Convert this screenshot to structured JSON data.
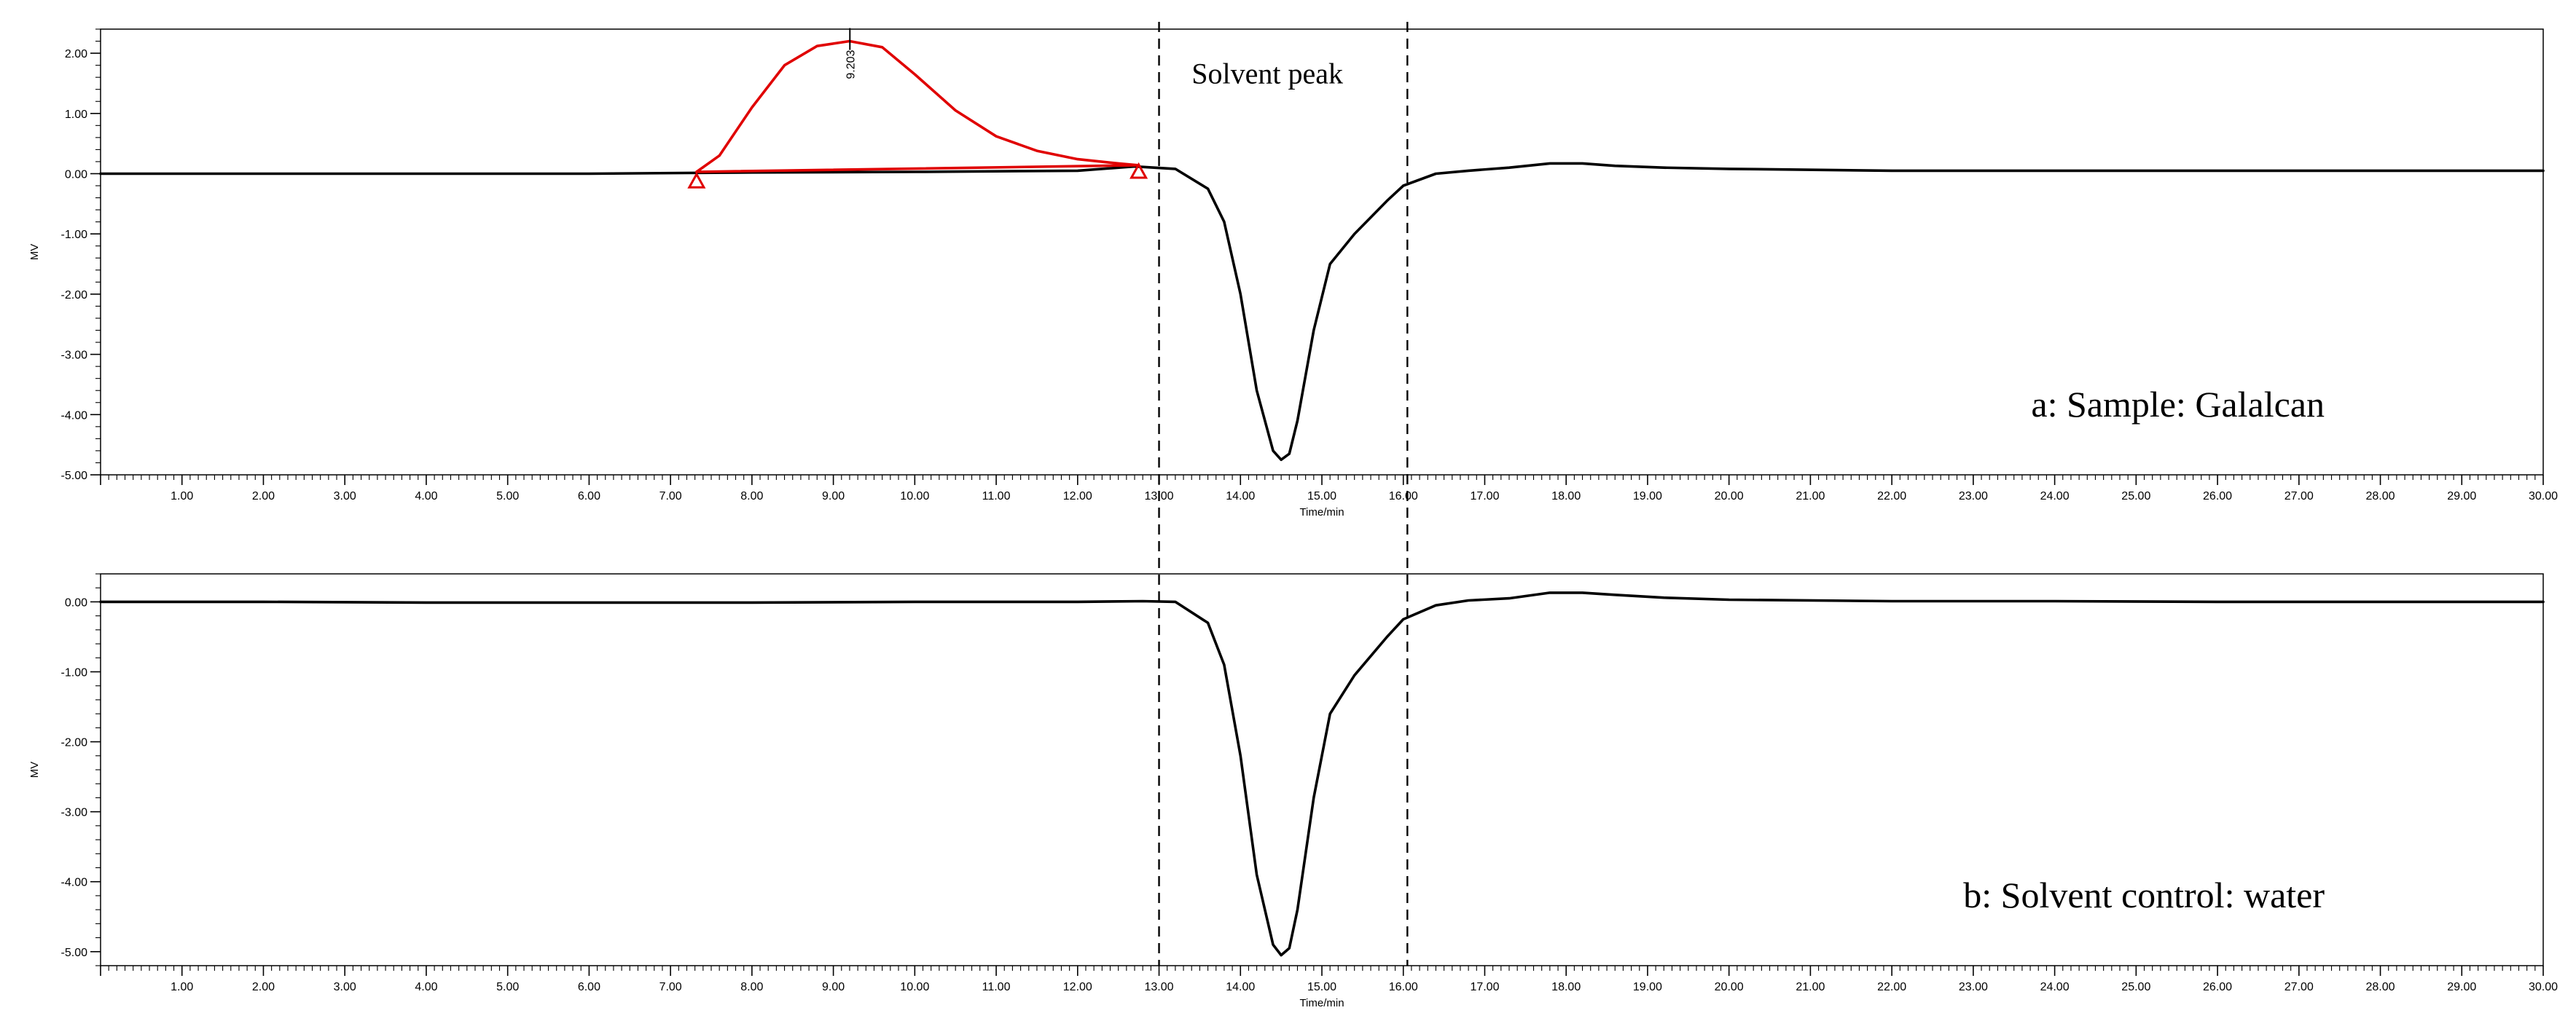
{
  "chart_data": [
    {
      "type": "line",
      "panel_label": "a: Sample: Galalcan",
      "xlabel": "Time/min",
      "ylabel": "MV",
      "xlim": [
        0,
        30
      ],
      "ylim": [
        -5.0,
        2.4
      ],
      "x_ticks": [
        "1.00",
        "2.00",
        "3.00",
        "4.00",
        "5.00",
        "6.00",
        "7.00",
        "8.00",
        "9.00",
        "10.00",
        "11.00",
        "12.00",
        "13.00",
        "14.00",
        "15.00",
        "16.00",
        "17.00",
        "18.00",
        "19.00",
        "20.00",
        "21.00",
        "22.00",
        "23.00",
        "24.00",
        "25.00",
        "26.00",
        "27.00",
        "28.00",
        "29.00",
        "30.00"
      ],
      "y_ticks": [
        "2.00",
        "1.00",
        "0.00",
        "-1.00",
        "-2.00",
        "-3.00",
        "-4.00",
        "-5.00"
      ],
      "grid": false,
      "series": [
        {
          "color": "#000000",
          "x": [
            0,
            2,
            4,
            6,
            8,
            10,
            12,
            12.7,
            13.2,
            13.6,
            13.8,
            14.0,
            14.2,
            14.4,
            14.5,
            14.6,
            14.7,
            14.9,
            15.1,
            15.4,
            15.8,
            16.0,
            16.4,
            16.8,
            17.3,
            17.8,
            18.2,
            18.6,
            19.2,
            20,
            22,
            24,
            26,
            28,
            30
          ],
          "y": [
            0.0,
            0.0,
            0.0,
            0.0,
            0.02,
            0.03,
            0.05,
            0.12,
            0.08,
            -0.25,
            -0.8,
            -2.0,
            -3.6,
            -4.6,
            -4.75,
            -4.65,
            -4.1,
            -2.6,
            -1.5,
            -1.0,
            -0.45,
            -0.2,
            0.0,
            0.05,
            0.1,
            0.17,
            0.17,
            0.13,
            0.1,
            0.08,
            0.05,
            0.05,
            0.05,
            0.05,
            0.05
          ]
        },
        {
          "color": "#e00000",
          "x": [
            7.32,
            7.6,
            8.0,
            8.4,
            8.8,
            9.2,
            9.6,
            10.0,
            10.5,
            11.0,
            11.5,
            12.0,
            12.5,
            12.75
          ],
          "y": [
            0.03,
            0.3,
            1.1,
            1.8,
            2.12,
            2.2,
            2.1,
            1.65,
            1.05,
            0.62,
            0.38,
            0.24,
            0.17,
            0.14
          ]
        },
        {
          "color": "#e00000",
          "x": [
            7.32,
            12.75
          ],
          "y": [
            0.03,
            0.14
          ]
        }
      ],
      "peak_label": {
        "x": 9.203,
        "y": 2.2,
        "text": "9.203"
      },
      "integration_markers": [
        {
          "x": 7.32,
          "y": -0.13
        },
        {
          "x": 12.75,
          "y": 0.03
        }
      ],
      "annotations": [
        {
          "text": "Solvent peak",
          "x": 13.4,
          "y": 1.5
        }
      ],
      "vlines": [
        13.0,
        16.05
      ]
    },
    {
      "type": "line",
      "panel_label": "b: Solvent control: water",
      "xlabel": "Time/min",
      "ylabel": "MV",
      "xlim": [
        0,
        30
      ],
      "ylim": [
        -5.2,
        0.4
      ],
      "x_ticks": [
        "1.00",
        "2.00",
        "3.00",
        "4.00",
        "5.00",
        "6.00",
        "7.00",
        "8.00",
        "9.00",
        "10.00",
        "11.00",
        "12.00",
        "13.00",
        "14.00",
        "15.00",
        "16.00",
        "17.00",
        "18.00",
        "19.00",
        "20.00",
        "21.00",
        "22.00",
        "23.00",
        "24.00",
        "25.00",
        "26.00",
        "27.00",
        "28.00",
        "29.00",
        "30.00"
      ],
      "y_ticks": [
        "0.00",
        "-1.00",
        "-2.00",
        "-3.00",
        "-4.00",
        "-5.00"
      ],
      "grid": false,
      "series": [
        {
          "color": "#000000",
          "x": [
            0,
            2,
            4,
            6,
            8,
            10,
            12,
            12.8,
            13.2,
            13.6,
            13.8,
            14.0,
            14.2,
            14.4,
            14.5,
            14.6,
            14.7,
            14.9,
            15.1,
            15.4,
            15.8,
            16.0,
            16.4,
            16.8,
            17.3,
            17.8,
            18.2,
            18.6,
            19.2,
            20,
            22,
            24,
            26,
            28,
            30
          ],
          "y": [
            0.0,
            0.0,
            -0.01,
            -0.01,
            -0.01,
            0.0,
            0.0,
            0.01,
            0.0,
            -0.3,
            -0.9,
            -2.2,
            -3.9,
            -4.9,
            -5.05,
            -4.95,
            -4.4,
            -2.8,
            -1.6,
            -1.05,
            -0.5,
            -0.25,
            -0.05,
            0.02,
            0.05,
            0.13,
            0.13,
            0.1,
            0.06,
            0.03,
            0.01,
            0.01,
            0.0,
            0.0,
            0.0
          ]
        }
      ],
      "vlines": [
        13.0,
        16.05
      ]
    }
  ]
}
